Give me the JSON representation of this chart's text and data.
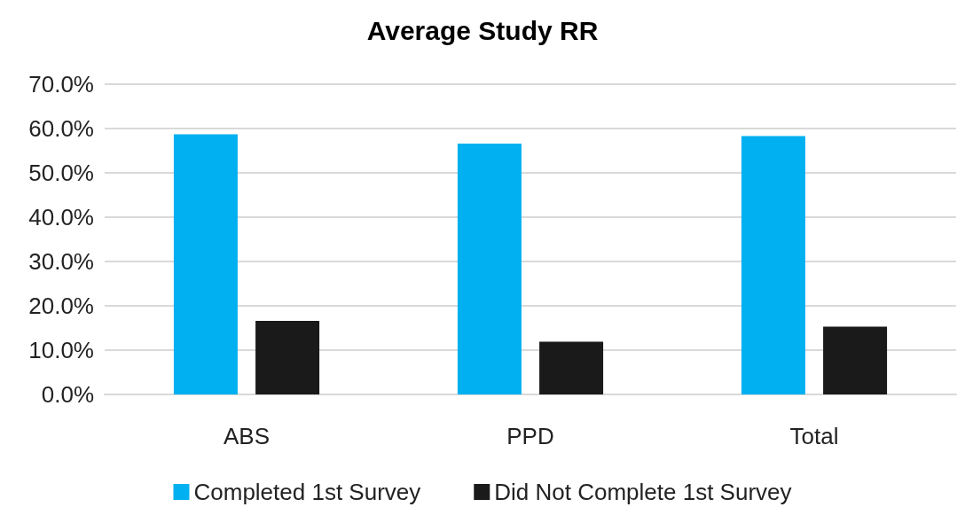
{
  "chart_data": {
    "type": "bar",
    "title": "Average Study RR",
    "categories": [
      "ABS",
      "PPD",
      "Total"
    ],
    "series": [
      {
        "name": "Completed 1st Survey",
        "color": "#00b0f0",
        "values": [
          58.7,
          56.6,
          58.3
        ]
      },
      {
        "name": "Did Not Complete 1st Survey",
        "color": "#1a1a1a",
        "values": [
          16.6,
          11.9,
          15.3
        ]
      }
    ],
    "ylim": [
      0,
      70
    ],
    "yticks": [
      {
        "value": 0,
        "label": "0.0%"
      },
      {
        "value": 10,
        "label": "10.0%"
      },
      {
        "value": 20,
        "label": "20.0%"
      },
      {
        "value": 30,
        "label": "30.0%"
      },
      {
        "value": 40,
        "label": "40.0%"
      },
      {
        "value": 50,
        "label": "50.0%"
      },
      {
        "value": 60,
        "label": "60.0%"
      },
      {
        "value": 70,
        "label": "70.0%"
      }
    ],
    "grid": "y",
    "legend": "bottom"
  }
}
